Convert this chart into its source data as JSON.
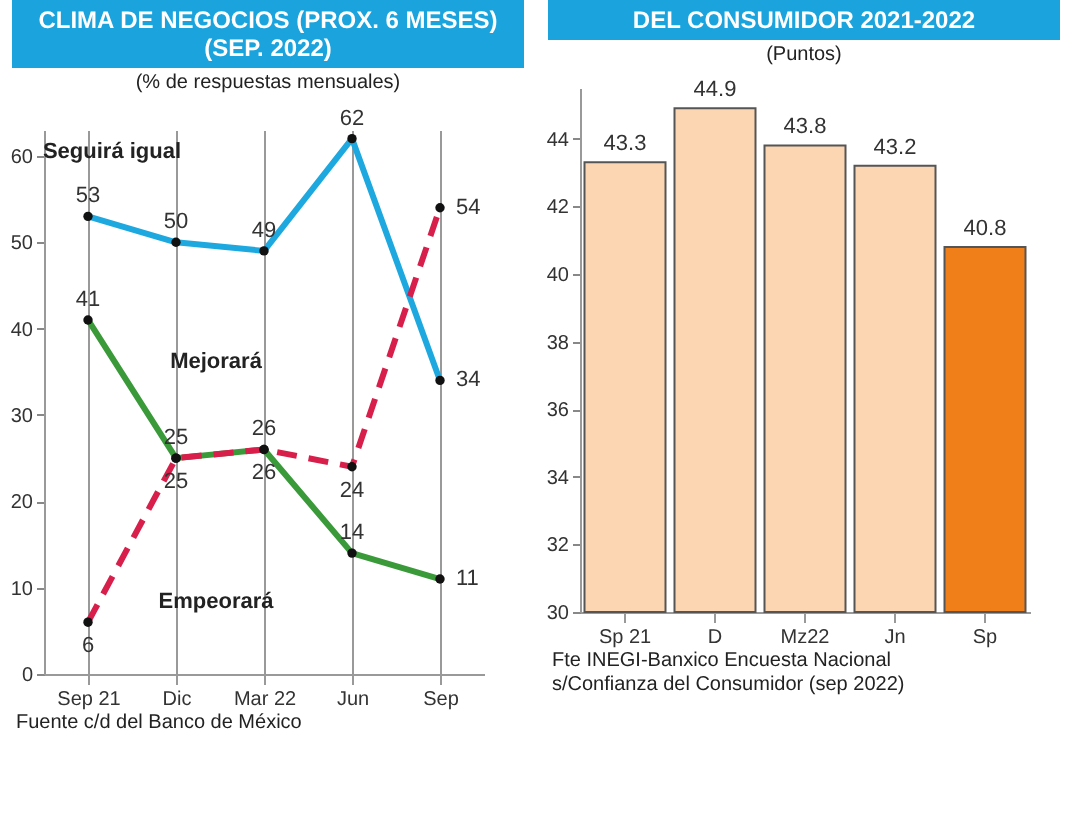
{
  "chart_data": [
    {
      "type": "line",
      "title": "CLIMA DE NEGOCIOS (PROX. 6 MESES) (SEP. 2022)",
      "subtitle": "(% de respuestas mensuales)",
      "categories": [
        "Sep 21",
        "Dic",
        "Mar 22",
        "Jun",
        "Sep"
      ],
      "series": [
        {
          "name": "Seguirá igual",
          "color": "#1ea8e0",
          "values": [
            53,
            50,
            49,
            62,
            34
          ]
        },
        {
          "name": "Mejorará",
          "color": "#3a9a3a",
          "values": [
            41,
            25,
            26,
            14,
            11
          ]
        },
        {
          "name": "Empeorará",
          "color": "#d81e4a",
          "values": [
            6,
            25,
            26,
            24,
            54
          ],
          "line_style": "dashed"
        }
      ],
      "ylim": [
        0,
        63
      ],
      "yticks": [
        0,
        10,
        20,
        30,
        40,
        50,
        60
      ],
      "grid": "x",
      "legend": false,
      "marker": "circle",
      "data_labels": true,
      "annotations": [
        "Fuente c/d del Banco de México"
      ]
    },
    {
      "type": "bar",
      "title": "DEL CONSUMIDOR 2021-2022",
      "subtitle": "(Puntos)",
      "categories": [
        "Sp 21",
        "D",
        "Mz22",
        "Jn",
        "Sp"
      ],
      "values": [
        43.3,
        44.9,
        43.8,
        43.2,
        40.8
      ],
      "colors": [
        "#fcd6b2",
        "#fcd6b2",
        "#fcd6b2",
        "#fcd6b2",
        "#f07f1a"
      ],
      "ylim": [
        30,
        45.5
      ],
      "yticks": [
        30,
        32,
        34,
        36,
        38,
        40,
        42,
        44
      ],
      "data_labels": true,
      "annotations": [
        "Fte INEGI-Banxico Encuesta Nacional",
        "s/Confianza del Consumidor (sep 2022)"
      ]
    }
  ]
}
